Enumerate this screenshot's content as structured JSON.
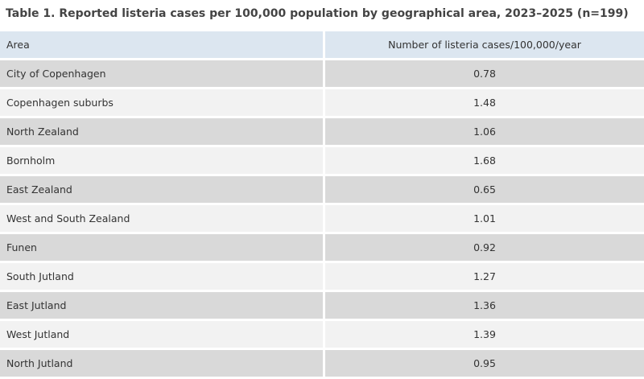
{
  "title": "Table 1. Reported listeria cases per 100,000 population by geographical area, 2023–2025 (n=199)",
  "columns": [
    "Area",
    "Number of listeria cases/100,000/year"
  ],
  "rows": [
    {
      "area": "City of Copenhagen",
      "value": "0.78"
    },
    {
      "area": "Copenhagen suburbs",
      "value": "1.48"
    },
    {
      "area": "North Zealand",
      "value": "1.06"
    },
    {
      "area": "Bornholm",
      "value": "1.68"
    },
    {
      "area": "East Zealand",
      "value": "0.65"
    },
    {
      "area": "West and South Zealand",
      "value": "1.01"
    },
    {
      "area": "Funen",
      "value": "0.92"
    },
    {
      "area": "South Jutland",
      "value": "1.27"
    },
    {
      "area": "East Jutland",
      "value": "1.36"
    },
    {
      "area": "West Jutland",
      "value": "1.39"
    },
    {
      "area": "North Jutland",
      "value": "0.95"
    }
  ],
  "colors": {
    "header_bg": "#dce6f0",
    "row_dark_bg": "#d9d9d9",
    "row_light_bg": "#f2f2f2",
    "text": "#333333"
  }
}
